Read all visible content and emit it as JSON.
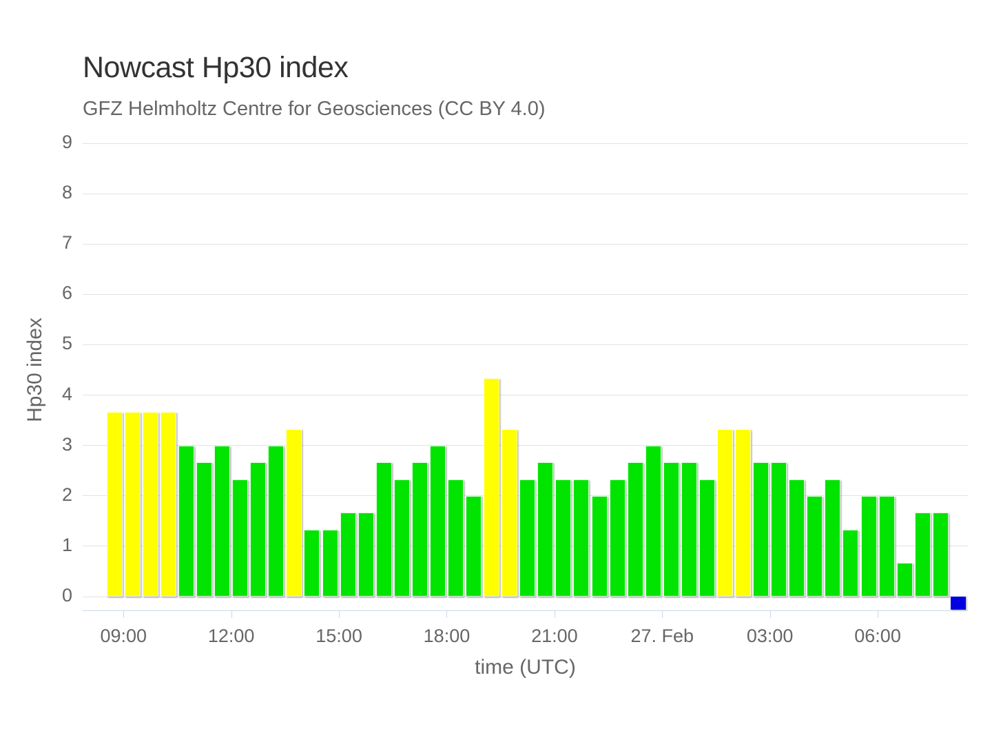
{
  "header": {
    "title": "Nowcast Hp30 index",
    "subtitle": "GFZ Helmholtz Centre for Geosciences (CC BY 4.0)"
  },
  "chart_data": {
    "type": "bar",
    "title": "Nowcast Hp30 index",
    "subtitle": "GFZ Helmholtz Centre for Geosciences (CC BY 4.0)",
    "xlabel": "time (UTC)",
    "ylabel": "Hp30 index",
    "ylim": [
      0,
      9
    ],
    "yticks": [
      0,
      1,
      2,
      3,
      4,
      5,
      6,
      7,
      8,
      9
    ],
    "grid": true,
    "legend": false,
    "x_tick_labels": [
      "09:00",
      "12:00",
      "15:00",
      "18:00",
      "21:00",
      "27. Feb",
      "03:00",
      "06:00"
    ],
    "categories": [
      "08:30",
      "09:00",
      "09:30",
      "10:00",
      "10:30",
      "11:00",
      "11:30",
      "12:00",
      "12:30",
      "13:00",
      "13:30",
      "14:00",
      "14:30",
      "15:00",
      "15:30",
      "16:00",
      "16:30",
      "17:00",
      "17:30",
      "18:00",
      "18:30",
      "19:00",
      "19:30",
      "20:00",
      "20:30",
      "21:00",
      "21:30",
      "22:00",
      "22:30",
      "23:00",
      "23:30",
      "00:00",
      "00:30",
      "01:00",
      "01:30",
      "02:00",
      "02:30",
      "03:00",
      "03:30",
      "04:00",
      "04:30",
      "05:00",
      "05:30",
      "06:00",
      "06:30",
      "07:00",
      "07:30"
    ],
    "values": [
      3.67,
      3.67,
      3.67,
      3.67,
      3.0,
      2.67,
      3.0,
      2.33,
      2.67,
      3.0,
      3.33,
      1.33,
      1.33,
      1.67,
      1.67,
      2.67,
      2.33,
      2.67,
      3.0,
      2.33,
      2.0,
      4.33,
      3.33,
      2.33,
      2.67,
      2.33,
      2.33,
      2.0,
      2.33,
      2.67,
      3.0,
      2.67,
      2.67,
      2.33,
      3.33,
      3.33,
      2.67,
      2.67,
      2.33,
      2.0,
      2.33,
      1.33,
      2.0,
      2.0,
      0.67,
      1.67,
      1.67
    ],
    "levels": [
      "y",
      "y",
      "y",
      "y",
      "g",
      "g",
      "g",
      "g",
      "g",
      "g",
      "y",
      "g",
      "g",
      "g",
      "g",
      "g",
      "g",
      "g",
      "g",
      "g",
      "g",
      "y",
      "y",
      "g",
      "g",
      "g",
      "g",
      "g",
      "g",
      "g",
      "g",
      "g",
      "g",
      "g",
      "y",
      "y",
      "g",
      "g",
      "g",
      "g",
      "g",
      "g",
      "g",
      "g",
      "g",
      "g",
      "g"
    ],
    "current_interval": {
      "time": "08:00",
      "value": 0
    },
    "colors": {
      "quiet_green": "#00E400",
      "active_yellow": "#FFFF00",
      "current_blue": "#0000E0",
      "gridline": "#e2e2e2",
      "axis_line": "#ccd6eb",
      "title_text": "#333333",
      "muted_text": "#666666"
    }
  }
}
